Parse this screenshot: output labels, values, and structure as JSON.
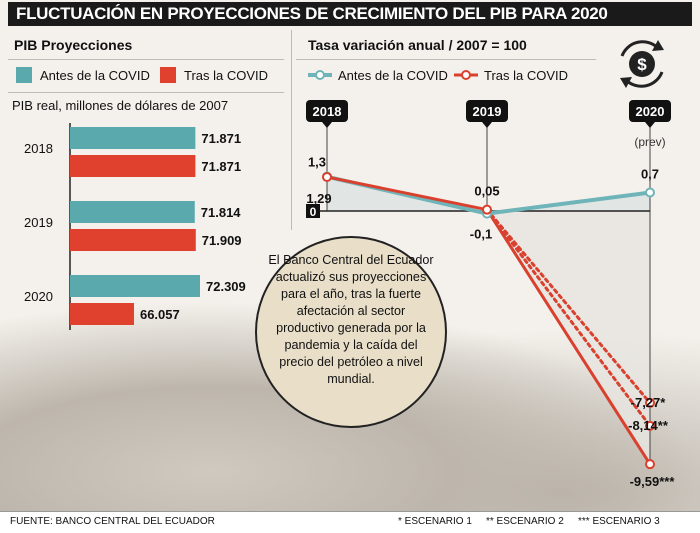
{
  "title": "FLUCTUACIÓN EN PROYECCIONES DE CRECIMIENTO DEL PIB PARA 2020",
  "left": {
    "section_title": "PIB Proyecciones",
    "legend": [
      {
        "label": "Antes de la COVID",
        "color": "#5aa9ad"
      },
      {
        "label": "Tras la COVID",
        "color": "#e0402e"
      }
    ],
    "subtitle": "PIB real, millones de dólares de 2007"
  },
  "right": {
    "section_title": "Tasa variación anual / 2007 = 100",
    "legend": [
      {
        "label": "Antes de la COVID",
        "color": "#6fb4b8"
      },
      {
        "label": "Tras la COVID",
        "color": "#d9402e"
      }
    ],
    "icon": "dollar-cycle-icon"
  },
  "bubble_text": "El Banco Central del Ecuador actualizó sus proyecciones para el año, tras la fuerte afectación al sector productivo generada por la pandemia y la caída del precio del petróleo a nivel mundial.",
  "footer": {
    "source": "FUENTE: BANCO CENTRAL DEL ECUADOR",
    "scenario1": "* ESCENARIO 1",
    "scenario2": "** ESCENARIO 2",
    "scenario3": "*** ESCENARIO 3"
  },
  "chart_data": [
    {
      "type": "bar",
      "orientation": "horizontal",
      "title": "PIB Proyecciones",
      "subtitle": "PIB real, millones de dólares de 2007",
      "categories": [
        "2018",
        "2019",
        "2020"
      ],
      "series": [
        {
          "name": "Antes de la COVID",
          "color": "#5aa9ad",
          "values": [
            71871,
            71814,
            72309
          ],
          "labels": [
            "71.871",
            "71.814",
            "72.309"
          ]
        },
        {
          "name": "Tras la COVID",
          "color": "#e0402e",
          "values": [
            71871,
            71909,
            66057
          ],
          "labels": [
            "71.871",
            "71.909",
            "66.057"
          ]
        }
      ]
    },
    {
      "type": "line",
      "title": "Tasa variación anual / 2007 = 100",
      "x": [
        "2018",
        "2019",
        "2020"
      ],
      "x_note": "(prev)",
      "zero_label": "0",
      "series": [
        {
          "name": "Antes de la COVID",
          "color": "#6fb4b8",
          "values": [
            1.3,
            -0.1,
            0.7
          ],
          "labels": [
            "1,3",
            "-0,1",
            "0,7"
          ]
        },
        {
          "name": "Tras la COVID",
          "color": "#d9402e",
          "values": [
            1.29,
            0.05,
            -9.59
          ],
          "labels": [
            "1,29",
            "0,05",
            "-9,59***"
          ]
        }
      ],
      "scenarios": [
        {
          "value": -7.27,
          "label": "-7,27*",
          "style": "dotted"
        },
        {
          "value": -8.14,
          "label": "-8,14**",
          "style": "dotted"
        },
        {
          "value": -9.59,
          "label": "-9,59***",
          "style": "solid"
        }
      ]
    }
  ]
}
